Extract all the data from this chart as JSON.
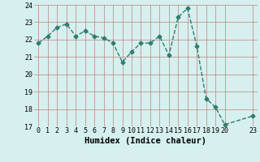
{
  "x": [
    0,
    1,
    2,
    3,
    4,
    5,
    6,
    7,
    8,
    9,
    10,
    11,
    12,
    13,
    14,
    15,
    16,
    17,
    18,
    19,
    20,
    23
  ],
  "y": [
    21.8,
    22.2,
    22.7,
    22.9,
    22.2,
    22.5,
    22.2,
    22.1,
    21.8,
    20.7,
    21.3,
    21.8,
    21.8,
    22.2,
    21.1,
    23.3,
    23.8,
    21.6,
    18.6,
    18.1,
    17.1,
    17.6
  ],
  "xlabel": "Humidex (Indice chaleur)",
  "ylim": [
    17,
    24
  ],
  "xlim": [
    -0.5,
    23.5
  ],
  "yticks": [
    17,
    18,
    19,
    20,
    21,
    22,
    23,
    24
  ],
  "xticks": [
    0,
    1,
    2,
    3,
    4,
    5,
    6,
    7,
    8,
    9,
    10,
    11,
    12,
    13,
    14,
    15,
    16,
    17,
    18,
    19,
    20,
    23
  ],
  "line_color": "#2e7d6e",
  "bg_color": "#d5f0ee",
  "grid_color_v": "#c08080",
  "grid_color_h": "#c08080",
  "marker": "D",
  "markersize": 2.5,
  "linewidth": 1.0,
  "tick_fontsize": 6.0,
  "xlabel_fontsize": 7.5
}
